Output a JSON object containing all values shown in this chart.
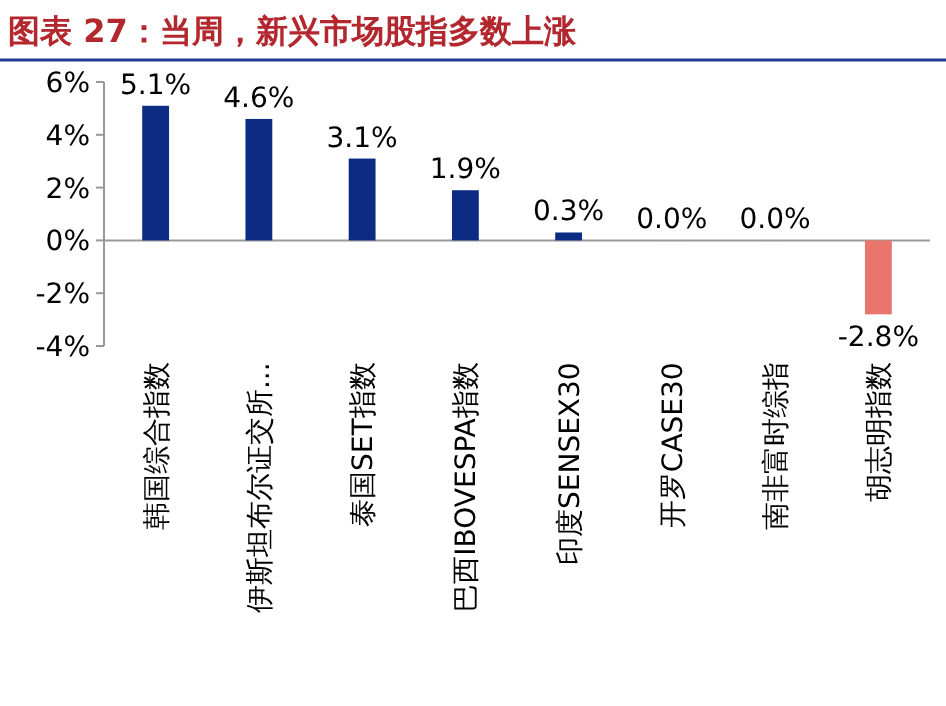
{
  "chart_data": {
    "type": "bar",
    "title": "图表 27：当周，新兴市场股指多数上涨",
    "categories": [
      "韩国综合指数",
      "伊斯坦布尔证交所...",
      "泰国SET指数",
      "巴西IBOVESPA指数",
      "印度SENSEX30",
      "开罗CASE30",
      "南非富时综指",
      "胡志明指数"
    ],
    "values": [
      5.1,
      4.6,
      3.1,
      1.9,
      0.3,
      0.0,
      0.0,
      -2.8
    ],
    "colors": [
      "#0c2c84",
      "#0c2c84",
      "#0c2c84",
      "#0c2c84",
      "#0c2c84",
      "#0c2c84",
      "#0c2c84",
      "#e8766c"
    ],
    "value_labels": [
      "5.1%",
      "4.6%",
      "3.1%",
      "1.9%",
      "0.3%",
      "0.0%",
      "0.0%",
      "-2.8%"
    ],
    "ylim": [
      -4,
      6
    ],
    "yticks": [
      {
        "value": -4,
        "label": "-4%"
      },
      {
        "value": -2,
        "label": "-2%"
      },
      {
        "value": 0,
        "label": "0%"
      },
      {
        "value": 2,
        "label": "2%"
      },
      {
        "value": 4,
        "label": "4%"
      },
      {
        "value": 6,
        "label": "6%"
      }
    ]
  }
}
